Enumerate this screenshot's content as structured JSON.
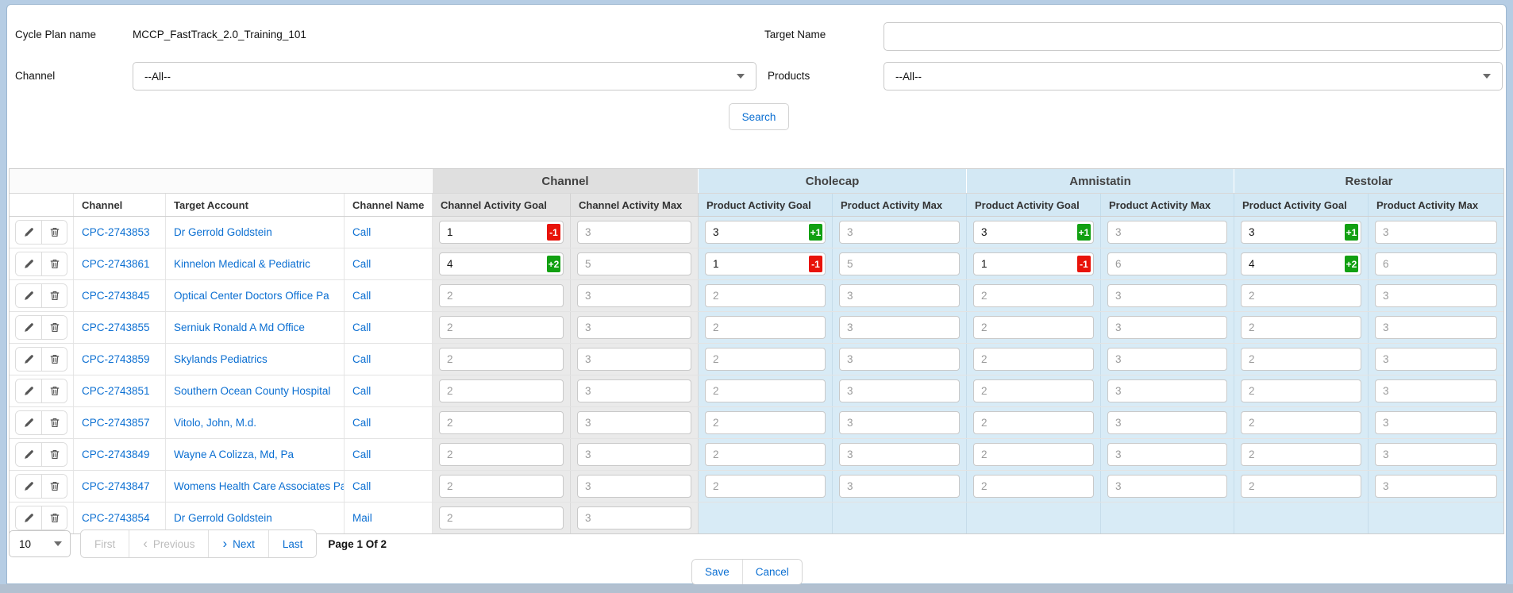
{
  "colors": {
    "link": "#0b6fd2",
    "badge_positive": "#12a012",
    "badge_negative": "#e81309",
    "group_gray_bg": "#dfdfdf",
    "subheader_gray_bg": "#e4e4e4",
    "group_blue_bg": "#d3e8f4",
    "cell_gray_bg": "#eaeaea",
    "cell_blue_bg": "#d8ebf6"
  },
  "form": {
    "cycle_plan_label": "Cycle Plan name",
    "cycle_plan_value": "MCCP_FastTrack_2.0_Training_101",
    "target_name_label": "Target Name",
    "target_name_value": "",
    "channel_label": "Channel",
    "channel_value": "--All--",
    "products_label": "Products",
    "products_value": "--All--",
    "search_button_label": "Search"
  },
  "table": {
    "left_columns": [
      "Channel",
      "Target Account",
      "Channel Name"
    ],
    "groups": [
      {
        "label": "Channel",
        "style": "gray",
        "columns": [
          "Channel Activity Goal",
          "Channel Activity Max"
        ]
      },
      {
        "label": "Cholecap",
        "style": "blue",
        "columns": [
          "Product Activity Goal",
          "Product Activity Max"
        ]
      },
      {
        "label": "Amnistatin",
        "style": "blue",
        "columns": [
          "Product Activity Goal",
          "Product Activity Max"
        ]
      },
      {
        "label": "Restolar",
        "style": "blue",
        "columns": [
          "Product Activity Goal",
          "Product Activity Max"
        ]
      }
    ],
    "rows": [
      {
        "id": "CPC-2743853",
        "account": "Dr Gerrold Goldstein",
        "channel_name": "Call",
        "cells": [
          {
            "value": "1",
            "badge": "-1",
            "edited": true
          },
          {
            "value": "3"
          },
          {
            "value": "3",
            "badge": "+1",
            "edited": true
          },
          {
            "value": "3"
          },
          {
            "value": "3",
            "badge": "+1",
            "edited": true
          },
          {
            "value": "3"
          },
          {
            "value": "3",
            "badge": "+1",
            "edited": true
          },
          {
            "value": "3"
          }
        ]
      },
      {
        "id": "CPC-2743861",
        "account": "Kinnelon Medical & Pediatric",
        "channel_name": "Call",
        "cells": [
          {
            "value": "4",
            "badge": "+2",
            "edited": true
          },
          {
            "value": "5"
          },
          {
            "value": "1",
            "badge": "-1",
            "edited": true
          },
          {
            "value": "5"
          },
          {
            "value": "1",
            "badge": "-1",
            "edited": true
          },
          {
            "value": "6"
          },
          {
            "value": "4",
            "badge": "+2",
            "edited": true
          },
          {
            "value": "6"
          }
        ]
      },
      {
        "id": "CPC-2743845",
        "account": "Optical Center Doctors Office Pa",
        "channel_name": "Call",
        "cells": [
          {
            "value": "2"
          },
          {
            "value": "3"
          },
          {
            "value": "2"
          },
          {
            "value": "3"
          },
          {
            "value": "2"
          },
          {
            "value": "3"
          },
          {
            "value": "2"
          },
          {
            "value": "3"
          }
        ]
      },
      {
        "id": "CPC-2743855",
        "account": "Serniuk Ronald A Md Office",
        "channel_name": "Call",
        "cells": [
          {
            "value": "2"
          },
          {
            "value": "3"
          },
          {
            "value": "2"
          },
          {
            "value": "3"
          },
          {
            "value": "2"
          },
          {
            "value": "3"
          },
          {
            "value": "2"
          },
          {
            "value": "3"
          }
        ]
      },
      {
        "id": "CPC-2743859",
        "account": "Skylands Pediatrics",
        "channel_name": "Call",
        "cells": [
          {
            "value": "2"
          },
          {
            "value": "3"
          },
          {
            "value": "2"
          },
          {
            "value": "3"
          },
          {
            "value": "2"
          },
          {
            "value": "3"
          },
          {
            "value": "2"
          },
          {
            "value": "3"
          }
        ]
      },
      {
        "id": "CPC-2743851",
        "account": "Southern Ocean County Hospital",
        "channel_name": "Call",
        "cells": [
          {
            "value": "2"
          },
          {
            "value": "3"
          },
          {
            "value": "2"
          },
          {
            "value": "3"
          },
          {
            "value": "2"
          },
          {
            "value": "3"
          },
          {
            "value": "2"
          },
          {
            "value": "3"
          }
        ]
      },
      {
        "id": "CPC-2743857",
        "account": "Vitolo, John, M.d.",
        "channel_name": "Call",
        "cells": [
          {
            "value": "2"
          },
          {
            "value": "3"
          },
          {
            "value": "2"
          },
          {
            "value": "3"
          },
          {
            "value": "2"
          },
          {
            "value": "3"
          },
          {
            "value": "2"
          },
          {
            "value": "3"
          }
        ]
      },
      {
        "id": "CPC-2743849",
        "account": "Wayne A Colizza, Md, Pa",
        "channel_name": "Call",
        "cells": [
          {
            "value": "2"
          },
          {
            "value": "3"
          },
          {
            "value": "2"
          },
          {
            "value": "3"
          },
          {
            "value": "2"
          },
          {
            "value": "3"
          },
          {
            "value": "2"
          },
          {
            "value": "3"
          }
        ]
      },
      {
        "id": "CPC-2743847",
        "account": "Womens Health Care Associates Pa",
        "channel_name": "Call",
        "cells": [
          {
            "value": "2"
          },
          {
            "value": "3"
          },
          {
            "value": "2"
          },
          {
            "value": "3"
          },
          {
            "value": "2"
          },
          {
            "value": "3"
          },
          {
            "value": "2"
          },
          {
            "value": "3"
          }
        ]
      },
      {
        "id": "CPC-2743854",
        "account": "Dr Gerrold Goldstein",
        "channel_name": "Mail",
        "cells": [
          {
            "value": "2"
          },
          {
            "value": "3"
          },
          {
            "empty": true
          },
          {
            "empty": true
          },
          {
            "empty": true
          },
          {
            "empty": true
          },
          {
            "empty": true
          },
          {
            "empty": true
          }
        ]
      }
    ]
  },
  "pagination": {
    "page_size": "10",
    "first_label": "First",
    "previous_label": "Previous",
    "next_label": "Next",
    "last_label": "Last",
    "page_info": "Page 1 Of 2"
  },
  "footer": {
    "save_label": "Save",
    "cancel_label": "Cancel"
  }
}
